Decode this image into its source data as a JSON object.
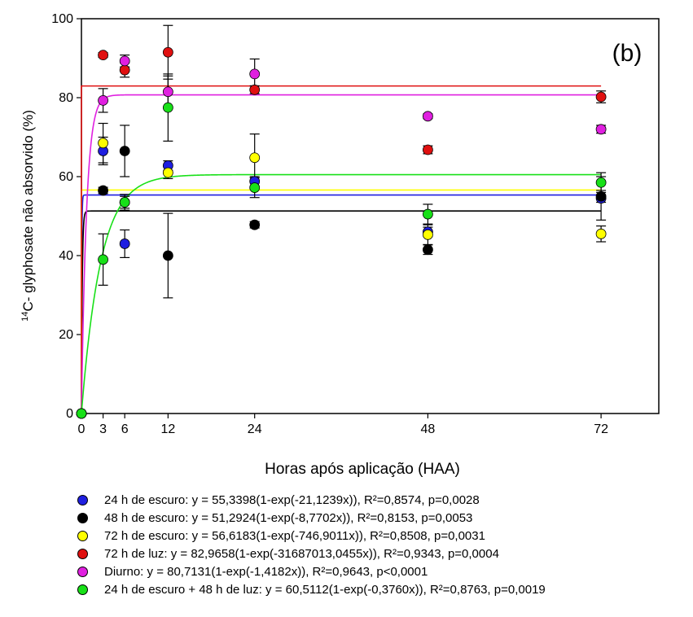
{
  "chart_data": {
    "type": "scatter",
    "panel_label": "(b)",
    "xlabel": "Horas após aplicação (HAA)",
    "ylabel": "14C- glyphosate não absorvido (%)",
    "ylabel_sup": "14",
    "ylabel_main": "C- glyphosate não absorvido (%)",
    "xlim": [
      0,
      80
    ],
    "ylim": [
      0,
      100
    ],
    "xticks": [
      0,
      3,
      6,
      12,
      24,
      48,
      72
    ],
    "yticks": [
      0,
      20,
      40,
      60,
      80,
      100
    ],
    "grid": false,
    "legend_position": "bottom",
    "series": [
      {
        "color": "#1f1fe0",
        "legend": "24 h de escuro: y = 55,3398(1-exp(-21,1239x)), R²=0,8574, p=0,0028",
        "fit": {
          "a": 55.3398,
          "b": 21.1239
        },
        "points": [
          [
            0,
            0,
            0
          ],
          [
            3,
            66.5,
            3.5
          ],
          [
            6,
            43,
            3.5
          ],
          [
            12,
            62.8,
            1.2
          ],
          [
            24,
            58.8,
            1.2
          ],
          [
            48,
            46,
            1.2
          ],
          [
            72,
            54.5,
            5.5
          ]
        ]
      },
      {
        "color": "#000000",
        "legend": "48 h de escuro: y = 51,2924(1-exp(-8,7702x)), R²=0,8153, p=0,0053",
        "fit": {
          "a": 51.2924,
          "b": 8.7702
        },
        "points": [
          [
            0,
            0,
            0
          ],
          [
            3,
            56.5,
            0.8
          ],
          [
            6,
            66.5,
            6.5
          ],
          [
            12,
            40,
            10.7
          ],
          [
            24,
            47.8,
            0.8
          ],
          [
            48,
            41.5,
            1.2
          ],
          [
            72,
            55,
            1.5
          ]
        ]
      },
      {
        "color": "#ffff00",
        "legend": "72 h de escuro: y = 56,6183(1-exp(-746,9011x)), R²=0,8508, p=0,0031",
        "fit": {
          "a": 56.6183,
          "b": 746.9011
        },
        "points": [
          [
            0,
            0,
            0
          ],
          [
            3,
            68.5,
            5
          ],
          [
            6,
            53.5,
            2
          ],
          [
            12,
            61,
            1.5
          ],
          [
            24,
            64.8,
            6
          ],
          [
            48,
            45.3,
            2.5
          ],
          [
            72,
            45.5,
            2
          ]
        ]
      },
      {
        "color": "#e01010",
        "legend": "72 h de luz:  y = 82,9658(1-exp(-31687013,0455x)), R²=0,9343, p=0,0004",
        "fit": {
          "a": 82.9658,
          "b": 31687013.0455
        },
        "points": [
          [
            0,
            0,
            0
          ],
          [
            3,
            90.8,
            0.6
          ],
          [
            6,
            87,
            1.8
          ],
          [
            12,
            91.5,
            6.8
          ],
          [
            24,
            82,
            1
          ],
          [
            48,
            66.8,
            1
          ],
          [
            72,
            80.2,
            1.5
          ]
        ]
      },
      {
        "color": "#e020e0",
        "legend": "Diurno:  y = 80,7131(1-exp(-1,4182x)), R²=0,9643, p<0,0001",
        "fit": {
          "a": 80.7131,
          "b": 1.4182
        },
        "points": [
          [
            0,
            0,
            0
          ],
          [
            3,
            79.3,
            3
          ],
          [
            6,
            89.3,
            1.5
          ],
          [
            12,
            81.5,
            4
          ],
          [
            24,
            86,
            3.8
          ],
          [
            48,
            75.3,
            0.6
          ],
          [
            72,
            72,
            1
          ]
        ]
      },
      {
        "color": "#18e018",
        "legend": "24 h de escuro + 48 h de luz: y = 60,5112(1-exp(-0,3760x)), R²=0,8763, p=0,0019",
        "fit": {
          "a": 60.5112,
          "b": 0.376
        },
        "points": [
          [
            0,
            0,
            0
          ],
          [
            3,
            39,
            6.5
          ],
          [
            6,
            53.5,
            1.5
          ],
          [
            12,
            77.5,
            8.5
          ],
          [
            24,
            57.2,
            2.5
          ],
          [
            48,
            50.5,
            2.5
          ],
          [
            72,
            58.5,
            2.5
          ]
        ]
      }
    ]
  }
}
